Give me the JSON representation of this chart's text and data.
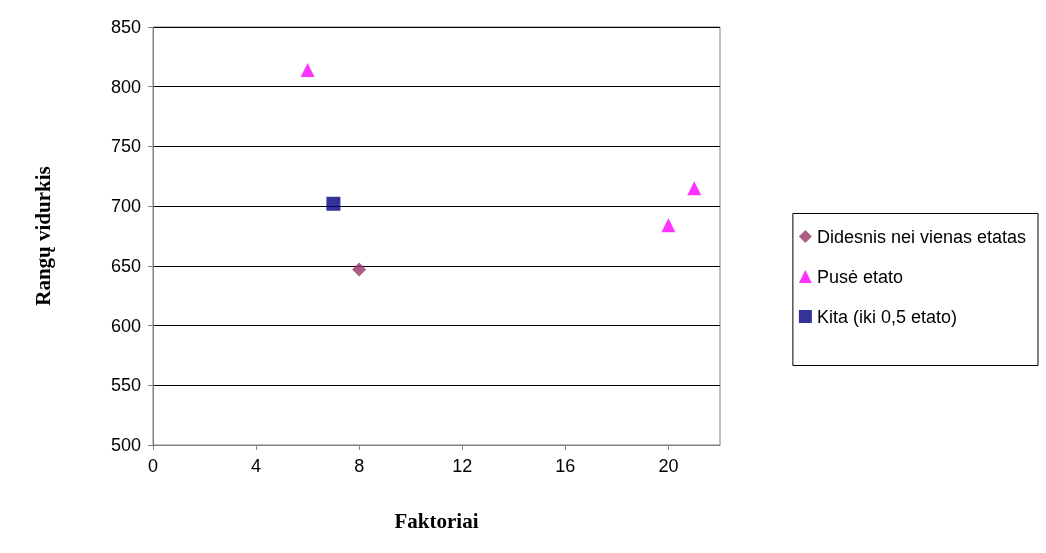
{
  "chart_data": {
    "type": "scatter",
    "xlabel": "Faktoriai",
    "ylabel": "Rangų vidurkis",
    "xlim": [
      0,
      22
    ],
    "xticks": [
      0,
      4,
      8,
      12,
      16,
      20
    ],
    "ylim": [
      500,
      850
    ],
    "yticks": [
      500,
      550,
      600,
      650,
      700,
      750,
      800,
      850
    ],
    "grid": "y",
    "legend": "right",
    "series": [
      {
        "name": "Didesnis nei vienas etatas",
        "color": "#993366",
        "marker": "diamond",
        "x": [
          8
        ],
        "values": [
          647
        ]
      },
      {
        "name": "Pusė etato",
        "color": "#ff00ff",
        "marker": "triangle",
        "x": [
          6,
          20,
          21
        ],
        "values": [
          814,
          684,
          715
        ]
      },
      {
        "name": "Kita (iki 0,5 etato)",
        "color": "#000080",
        "marker": "square",
        "x": [
          7
        ],
        "values": [
          702
        ]
      }
    ]
  }
}
